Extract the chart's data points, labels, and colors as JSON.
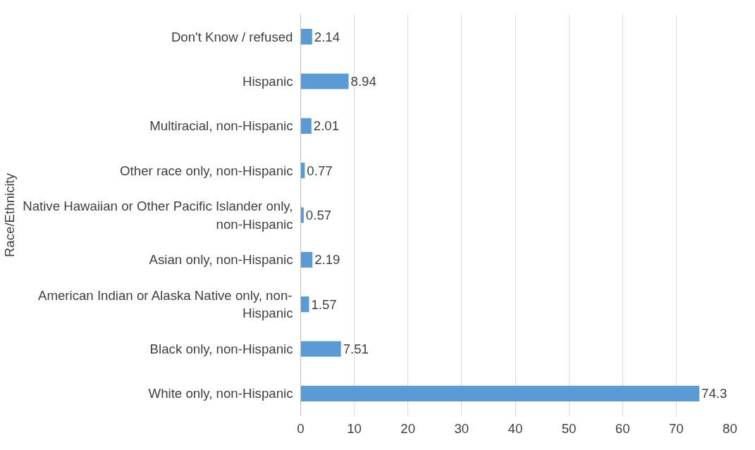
{
  "chart_data": {
    "type": "bar",
    "orientation": "horizontal",
    "ylabel": "Race/Ethnicity",
    "categories": [
      "Don't Know / refused",
      "Hispanic",
      "Multiracial, non-Hispanic",
      "Other race only, non-Hispanic",
      "Native Hawaiian or Other Pacific Islander only, non-Hispanic",
      "Asian only, non-Hispanic",
      "American Indian or Alaska Native only, non-Hispanic",
      "Black only, non-Hispanic",
      "White only, non-Hispanic"
    ],
    "values": [
      2.14,
      8.94,
      2.01,
      0.77,
      0.57,
      2.19,
      1.57,
      7.51,
      74.3
    ],
    "color": "#5b9bd5",
    "xlim": [
      0,
      80
    ],
    "xticks": [
      0,
      10,
      20,
      30,
      40,
      50,
      60,
      70,
      80
    ],
    "grid": "x",
    "data_labels": true
  }
}
